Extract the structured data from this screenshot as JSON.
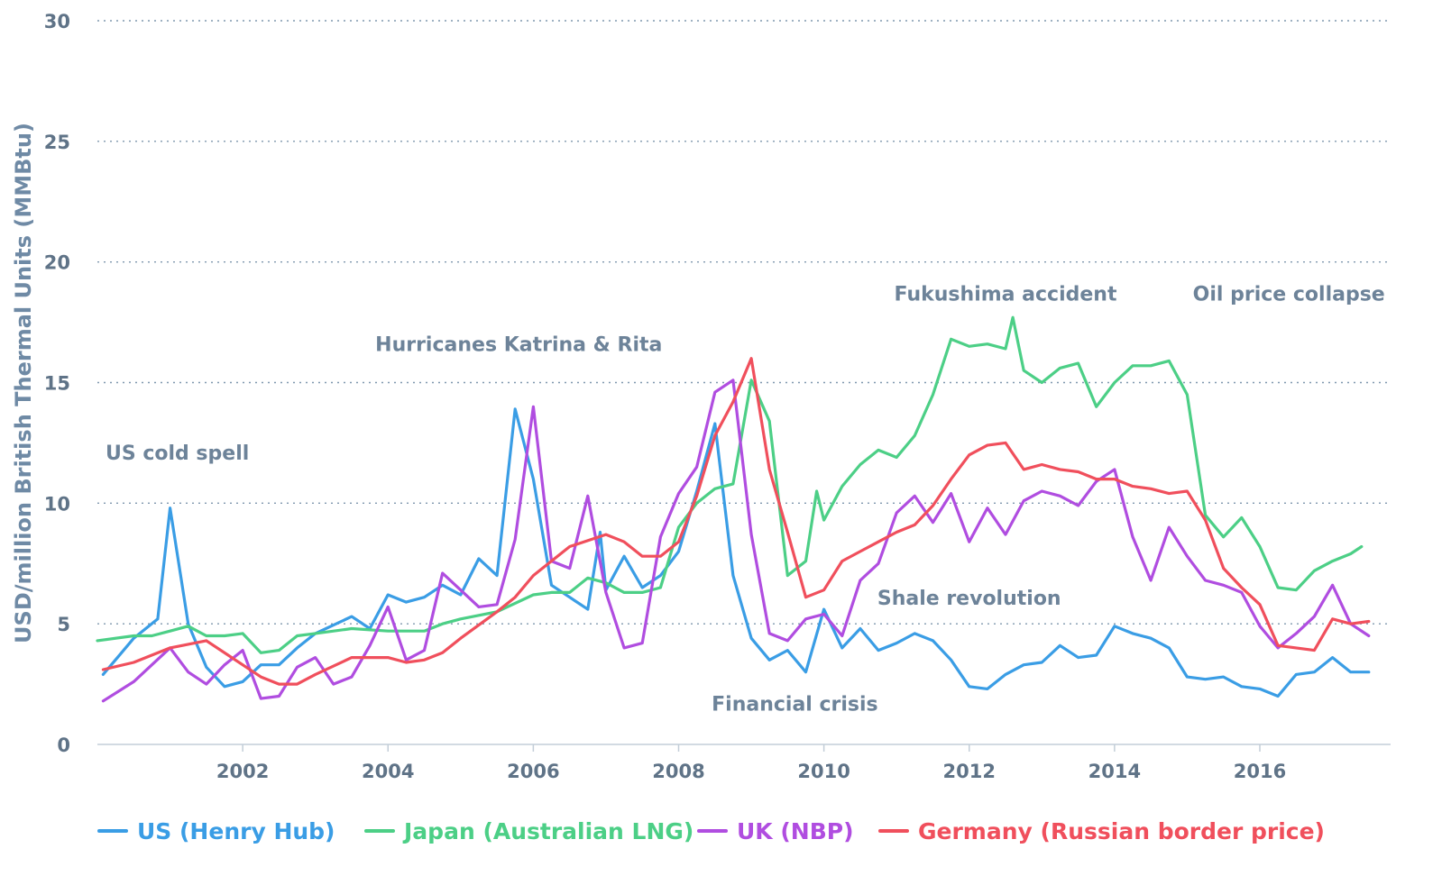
{
  "chart_data": {
    "type": "line",
    "title": "",
    "xlabel": "",
    "ylabel": "USD/million British Thermal Units (MMBtu)",
    "xlim": [
      2000.0,
      2017.8
    ],
    "ylim": [
      0,
      30
    ],
    "grid": true,
    "legend_position": "bottom",
    "x_ticks": [
      2002,
      2004,
      2006,
      2008,
      2010,
      2012,
      2014,
      2016
    ],
    "x_tick_labels": [
      "2002",
      "2004",
      "2006",
      "2008",
      "2010",
      "2012",
      "2014",
      "2016"
    ],
    "y_ticks": [
      0,
      5,
      10,
      15,
      20,
      25,
      30
    ],
    "y_tick_labels": [
      "0",
      "5",
      "10",
      "15",
      "20",
      "25",
      "30"
    ],
    "annotations": [
      {
        "text": "US cold spell",
        "x": 2001.1,
        "y": 11.8
      },
      {
        "text": "Hurricanes Katrina & Rita",
        "x": 2005.8,
        "y": 16.3
      },
      {
        "text": "Fukushima accident",
        "x": 2012.5,
        "y": 18.4
      },
      {
        "text": "Oil price collapse",
        "x": 2016.4,
        "y": 18.4
      },
      {
        "text": "Shale revolution",
        "x": 2012.0,
        "y": 5.8
      },
      {
        "text": "Financial crisis",
        "x": 2009.6,
        "y": 1.4
      }
    ],
    "series": [
      {
        "name": "US (Henry Hub)",
        "color": "#3a9de5",
        "points": [
          [
            2000.08,
            2.9
          ],
          [
            2000.5,
            4.4
          ],
          [
            2000.83,
            5.2
          ],
          [
            2001.0,
            9.8
          ],
          [
            2001.25,
            5.0
          ],
          [
            2001.5,
            3.2
          ],
          [
            2001.75,
            2.4
          ],
          [
            2002.0,
            2.6
          ],
          [
            2002.25,
            3.3
          ],
          [
            2002.5,
            3.3
          ],
          [
            2002.75,
            4.0
          ],
          [
            2003.0,
            4.6
          ],
          [
            2003.5,
            5.3
          ],
          [
            2003.75,
            4.8
          ],
          [
            2004.0,
            6.2
          ],
          [
            2004.25,
            5.9
          ],
          [
            2004.5,
            6.1
          ],
          [
            2004.75,
            6.6
          ],
          [
            2005.0,
            6.2
          ],
          [
            2005.25,
            7.7
          ],
          [
            2005.5,
            7.0
          ],
          [
            2005.75,
            13.9
          ],
          [
            2006.0,
            11.0
          ],
          [
            2006.25,
            6.6
          ],
          [
            2006.5,
            6.1
          ],
          [
            2006.75,
            5.6
          ],
          [
            2006.92,
            8.8
          ],
          [
            2007.0,
            6.4
          ],
          [
            2007.25,
            7.8
          ],
          [
            2007.5,
            6.5
          ],
          [
            2007.75,
            7.0
          ],
          [
            2008.0,
            8.0
          ],
          [
            2008.25,
            10.5
          ],
          [
            2008.5,
            13.3
          ],
          [
            2008.75,
            7.0
          ],
          [
            2009.0,
            4.4
          ],
          [
            2009.25,
            3.5
          ],
          [
            2009.5,
            3.9
          ],
          [
            2009.75,
            3.0
          ],
          [
            2010.0,
            5.6
          ],
          [
            2010.25,
            4.0
          ],
          [
            2010.5,
            4.8
          ],
          [
            2010.75,
            3.9
          ],
          [
            2011.0,
            4.2
          ],
          [
            2011.25,
            4.6
          ],
          [
            2011.5,
            4.3
          ],
          [
            2011.75,
            3.5
          ],
          [
            2012.0,
            2.4
          ],
          [
            2012.25,
            2.3
          ],
          [
            2012.5,
            2.9
          ],
          [
            2012.75,
            3.3
          ],
          [
            2013.0,
            3.4
          ],
          [
            2013.25,
            4.1
          ],
          [
            2013.5,
            3.6
          ],
          [
            2013.75,
            3.7
          ],
          [
            2014.0,
            4.9
          ],
          [
            2014.25,
            4.6
          ],
          [
            2014.5,
            4.4
          ],
          [
            2014.75,
            4.0
          ],
          [
            2015.0,
            2.8
          ],
          [
            2015.25,
            2.7
          ],
          [
            2015.5,
            2.8
          ],
          [
            2015.75,
            2.4
          ],
          [
            2016.0,
            2.3
          ],
          [
            2016.25,
            2.0
          ],
          [
            2016.5,
            2.9
          ],
          [
            2016.75,
            3.0
          ],
          [
            2017.0,
            3.6
          ],
          [
            2017.25,
            3.0
          ],
          [
            2017.5,
            3.0
          ]
        ]
      },
      {
        "name": "Japan (Australian LNG)",
        "color": "#4ccf86",
        "points": [
          [
            2000.0,
            4.3
          ],
          [
            2000.5,
            4.5
          ],
          [
            2000.75,
            4.5
          ],
          [
            2001.0,
            4.7
          ],
          [
            2001.25,
            4.9
          ],
          [
            2001.5,
            4.5
          ],
          [
            2001.75,
            4.5
          ],
          [
            2002.0,
            4.6
          ],
          [
            2002.25,
            3.8
          ],
          [
            2002.5,
            3.9
          ],
          [
            2002.75,
            4.5
          ],
          [
            2003.0,
            4.6
          ],
          [
            2003.5,
            4.8
          ],
          [
            2004.0,
            4.7
          ],
          [
            2004.5,
            4.7
          ],
          [
            2004.75,
            5.0
          ],
          [
            2005.0,
            5.2
          ],
          [
            2005.5,
            5.5
          ],
          [
            2006.0,
            6.2
          ],
          [
            2006.25,
            6.3
          ],
          [
            2006.5,
            6.3
          ],
          [
            2006.75,
            6.9
          ],
          [
            2007.0,
            6.7
          ],
          [
            2007.25,
            6.3
          ],
          [
            2007.5,
            6.3
          ],
          [
            2007.75,
            6.5
          ],
          [
            2008.0,
            9.0
          ],
          [
            2008.25,
            10.0
          ],
          [
            2008.5,
            10.6
          ],
          [
            2008.75,
            10.8
          ],
          [
            2009.0,
            15.1
          ],
          [
            2009.25,
            13.4
          ],
          [
            2009.5,
            7.0
          ],
          [
            2009.75,
            7.6
          ],
          [
            2009.9,
            10.5
          ],
          [
            2010.0,
            9.3
          ],
          [
            2010.25,
            10.7
          ],
          [
            2010.5,
            11.6
          ],
          [
            2010.75,
            12.2
          ],
          [
            2011.0,
            11.9
          ],
          [
            2011.25,
            12.8
          ],
          [
            2011.5,
            14.5
          ],
          [
            2011.75,
            16.8
          ],
          [
            2012.0,
            16.5
          ],
          [
            2012.25,
            16.6
          ],
          [
            2012.5,
            16.4
          ],
          [
            2012.6,
            17.7
          ],
          [
            2012.75,
            15.5
          ],
          [
            2013.0,
            15.0
          ],
          [
            2013.25,
            15.6
          ],
          [
            2013.5,
            15.8
          ],
          [
            2013.75,
            14.0
          ],
          [
            2014.0,
            15.0
          ],
          [
            2014.25,
            15.7
          ],
          [
            2014.5,
            15.7
          ],
          [
            2014.75,
            15.9
          ],
          [
            2015.0,
            14.5
          ],
          [
            2015.25,
            9.5
          ],
          [
            2015.5,
            8.6
          ],
          [
            2015.75,
            9.4
          ],
          [
            2016.0,
            8.2
          ],
          [
            2016.25,
            6.5
          ],
          [
            2016.5,
            6.4
          ],
          [
            2016.75,
            7.2
          ],
          [
            2017.0,
            7.6
          ],
          [
            2017.25,
            7.9
          ],
          [
            2017.4,
            8.2
          ]
        ]
      },
      {
        "name": "UK (NBP)",
        "color": "#b04de0",
        "points": [
          [
            2000.08,
            1.8
          ],
          [
            2000.5,
            2.6
          ],
          [
            2000.75,
            3.3
          ],
          [
            2001.0,
            4.0
          ],
          [
            2001.25,
            3.0
          ],
          [
            2001.5,
            2.5
          ],
          [
            2001.75,
            3.3
          ],
          [
            2002.0,
            3.9
          ],
          [
            2002.25,
            1.9
          ],
          [
            2002.5,
            2.0
          ],
          [
            2002.75,
            3.2
          ],
          [
            2003.0,
            3.6
          ],
          [
            2003.25,
            2.5
          ],
          [
            2003.5,
            2.8
          ],
          [
            2003.75,
            4.1
          ],
          [
            2004.0,
            5.7
          ],
          [
            2004.25,
            3.5
          ],
          [
            2004.5,
            3.9
          ],
          [
            2004.75,
            7.1
          ],
          [
            2005.0,
            6.4
          ],
          [
            2005.25,
            5.7
          ],
          [
            2005.5,
            5.8
          ],
          [
            2005.75,
            8.5
          ],
          [
            2006.0,
            14.0
          ],
          [
            2006.25,
            7.6
          ],
          [
            2006.5,
            7.3
          ],
          [
            2006.75,
            10.3
          ],
          [
            2007.0,
            6.3
          ],
          [
            2007.25,
            4.0
          ],
          [
            2007.5,
            4.2
          ],
          [
            2007.75,
            8.6
          ],
          [
            2008.0,
            10.4
          ],
          [
            2008.25,
            11.5
          ],
          [
            2008.5,
            14.6
          ],
          [
            2008.75,
            15.1
          ],
          [
            2009.0,
            8.7
          ],
          [
            2009.25,
            4.6
          ],
          [
            2009.5,
            4.3
          ],
          [
            2009.75,
            5.2
          ],
          [
            2010.0,
            5.4
          ],
          [
            2010.25,
            4.5
          ],
          [
            2010.5,
            6.8
          ],
          [
            2010.75,
            7.5
          ],
          [
            2011.0,
            9.6
          ],
          [
            2011.25,
            10.3
          ],
          [
            2011.5,
            9.2
          ],
          [
            2011.75,
            10.4
          ],
          [
            2012.0,
            8.4
          ],
          [
            2012.25,
            9.8
          ],
          [
            2012.5,
            8.7
          ],
          [
            2012.75,
            10.1
          ],
          [
            2013.0,
            10.5
          ],
          [
            2013.25,
            10.3
          ],
          [
            2013.5,
            9.9
          ],
          [
            2013.75,
            10.9
          ],
          [
            2014.0,
            11.4
          ],
          [
            2014.25,
            8.6
          ],
          [
            2014.5,
            6.8
          ],
          [
            2014.75,
            9.0
          ],
          [
            2015.0,
            7.8
          ],
          [
            2015.25,
            6.8
          ],
          [
            2015.5,
            6.6
          ],
          [
            2015.75,
            6.3
          ],
          [
            2016.0,
            4.9
          ],
          [
            2016.25,
            4.0
          ],
          [
            2016.5,
            4.6
          ],
          [
            2016.75,
            5.3
          ],
          [
            2017.0,
            6.6
          ],
          [
            2017.25,
            5.0
          ],
          [
            2017.5,
            4.5
          ]
        ]
      },
      {
        "name": "Germany (Russian border price)",
        "color": "#f04f5c",
        "points": [
          [
            2000.08,
            3.1
          ],
          [
            2000.5,
            3.4
          ],
          [
            2001.0,
            4.0
          ],
          [
            2001.5,
            4.3
          ],
          [
            2002.0,
            3.3
          ],
          [
            2002.25,
            2.8
          ],
          [
            2002.5,
            2.5
          ],
          [
            2002.75,
            2.5
          ],
          [
            2003.0,
            2.9
          ],
          [
            2003.5,
            3.6
          ],
          [
            2004.0,
            3.6
          ],
          [
            2004.25,
            3.4
          ],
          [
            2004.5,
            3.5
          ],
          [
            2004.75,
            3.8
          ],
          [
            2005.0,
            4.4
          ],
          [
            2005.5,
            5.5
          ],
          [
            2005.75,
            6.1
          ],
          [
            2006.0,
            7.0
          ],
          [
            2006.5,
            8.2
          ],
          [
            2007.0,
            8.7
          ],
          [
            2007.25,
            8.4
          ],
          [
            2007.5,
            7.8
          ],
          [
            2007.75,
            7.8
          ],
          [
            2008.0,
            8.4
          ],
          [
            2008.25,
            10.3
          ],
          [
            2008.5,
            12.8
          ],
          [
            2008.75,
            14.2
          ],
          [
            2009.0,
            16.0
          ],
          [
            2009.25,
            11.4
          ],
          [
            2009.5,
            8.8
          ],
          [
            2009.75,
            6.1
          ],
          [
            2010.0,
            6.4
          ],
          [
            2010.25,
            7.6
          ],
          [
            2010.5,
            8.0
          ],
          [
            2010.75,
            8.4
          ],
          [
            2011.0,
            8.8
          ],
          [
            2011.25,
            9.1
          ],
          [
            2011.5,
            9.9
          ],
          [
            2011.75,
            11.0
          ],
          [
            2012.0,
            12.0
          ],
          [
            2012.25,
            12.4
          ],
          [
            2012.5,
            12.5
          ],
          [
            2012.75,
            11.4
          ],
          [
            2013.0,
            11.6
          ],
          [
            2013.25,
            11.4
          ],
          [
            2013.5,
            11.3
          ],
          [
            2013.75,
            11.0
          ],
          [
            2014.0,
            11.0
          ],
          [
            2014.25,
            10.7
          ],
          [
            2014.5,
            10.6
          ],
          [
            2014.75,
            10.4
          ],
          [
            2015.0,
            10.5
          ],
          [
            2015.25,
            9.3
          ],
          [
            2015.5,
            7.3
          ],
          [
            2015.75,
            6.5
          ],
          [
            2016.0,
            5.8
          ],
          [
            2016.25,
            4.1
          ],
          [
            2016.5,
            4.0
          ],
          [
            2016.75,
            3.9
          ],
          [
            2017.0,
            5.2
          ],
          [
            2017.25,
            5.0
          ],
          [
            2017.5,
            5.1
          ]
        ]
      }
    ]
  }
}
